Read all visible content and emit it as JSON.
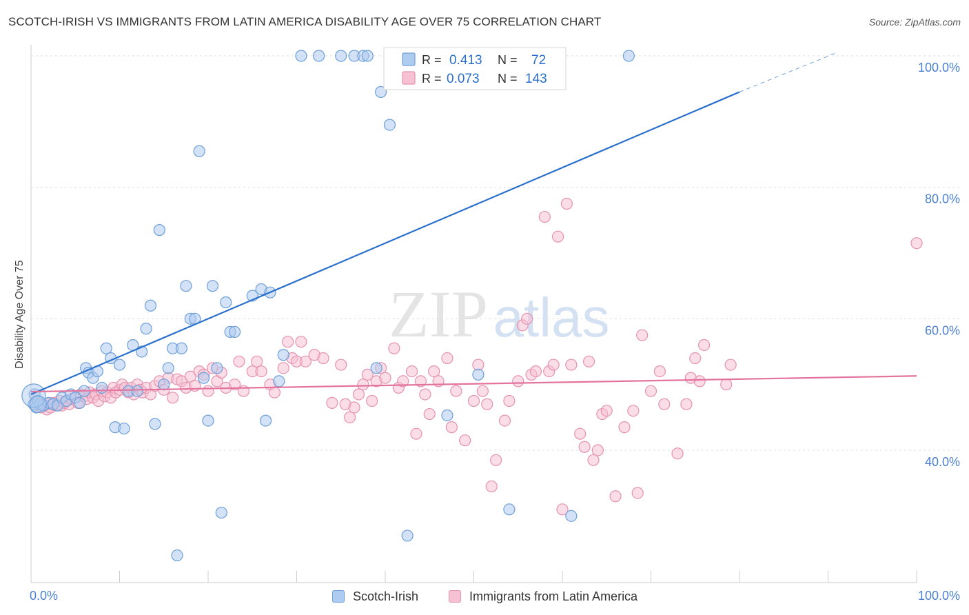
{
  "title": "SCOTCH-IRISH VS IMMIGRANTS FROM LATIN AMERICA DISABILITY AGE OVER 75 CORRELATION CHART",
  "source": "Source: ZipAtlas.com",
  "watermark": {
    "zip": "ZIP",
    "atlas": "atlas"
  },
  "colors": {
    "blue_fill": "#aecbf0",
    "blue_stroke": "#6d9fd8",
    "blue_line": "#2a6fcb",
    "pink_fill": "#f6c1d2",
    "pink_stroke": "#e592b0",
    "pink_line": "#e3739d",
    "axis_label": "#4a7fd0",
    "grid": "#dddddd"
  },
  "legend": {
    "rows": [
      {
        "r_label": "R =",
        "r_value": "0.413",
        "n_label": "N =",
        "n_value": "72"
      },
      {
        "r_label": "R =",
        "r_value": "0.073",
        "n_label": "N =",
        "n_value": "143"
      }
    ]
  },
  "bottom_legend": [
    "Scotch-Irish",
    "Immigrants from Latin America"
  ],
  "chart_data": {
    "type": "scatter",
    "title": "SCOTCH-IRISH VS IMMIGRANTS FROM LATIN AMERICA DISABILITY AGE OVER 75 CORRELATION CHART",
    "ylabel": "Disability Age Over 75",
    "x_tick_labels": [
      "0.0%",
      "100.0%"
    ],
    "y_tick_labels": [
      "100.0%",
      "80.0%",
      "60.0%",
      "40.0%"
    ],
    "y_ticks": [
      100,
      80,
      60,
      40
    ],
    "xlim": [
      0,
      100
    ],
    "ylim": [
      22,
      102
    ],
    "grid": true,
    "legend_position": "top-center",
    "series": [
      {
        "name": "Scotch-Irish",
        "color": "#aecbf0",
        "r": 0.413,
        "n": 72,
        "trend": {
          "x0": 0,
          "y0": 48.5,
          "x1": 80,
          "y1": 94.5,
          "dashed_to_x": 91,
          "dashed_to_y": 100.5
        },
        "points": [
          [
            0.3,
            47.0
          ],
          [
            0.4,
            48.5
          ],
          [
            0.6,
            46.5
          ],
          [
            0.8,
            47.5
          ],
          [
            1.0,
            47.0
          ],
          [
            1.4,
            46.8
          ],
          [
            2.0,
            47.2
          ],
          [
            2.5,
            47.0
          ],
          [
            3.0,
            46.8
          ],
          [
            3.5,
            48.0
          ],
          [
            4.0,
            47.5
          ],
          [
            4.5,
            48.5
          ],
          [
            5.0,
            48.0
          ],
          [
            5.5,
            47.2
          ],
          [
            6.0,
            49.0
          ],
          [
            6.2,
            52.5
          ],
          [
            6.5,
            51.8
          ],
          [
            7.0,
            51.0
          ],
          [
            7.5,
            52.0
          ],
          [
            8.0,
            49.5
          ],
          [
            8.5,
            55.5
          ],
          [
            9.0,
            54.0
          ],
          [
            9.5,
            43.5
          ],
          [
            10.0,
            53.0
          ],
          [
            10.5,
            43.3
          ],
          [
            11.0,
            49.0
          ],
          [
            11.5,
            56.0
          ],
          [
            12.0,
            49.0
          ],
          [
            12.5,
            55.0
          ],
          [
            13.0,
            58.5
          ],
          [
            13.5,
            62.0
          ],
          [
            14.0,
            44.0
          ],
          [
            14.5,
            73.5
          ],
          [
            15.0,
            50.0
          ],
          [
            15.5,
            52.5
          ],
          [
            16.0,
            55.5
          ],
          [
            16.5,
            24.0
          ],
          [
            17.0,
            55.5
          ],
          [
            17.5,
            65.0
          ],
          [
            18.0,
            60.0
          ],
          [
            18.5,
            60.0
          ],
          [
            19.0,
            85.5
          ],
          [
            19.5,
            51.0
          ],
          [
            20.0,
            44.5
          ],
          [
            20.5,
            65.0
          ],
          [
            21.0,
            52.5
          ],
          [
            21.5,
            30.5
          ],
          [
            22.0,
            62.5
          ],
          [
            22.5,
            58.0
          ],
          [
            23.0,
            58.0
          ],
          [
            25.0,
            63.5
          ],
          [
            26.0,
            64.5
          ],
          [
            26.5,
            44.5
          ],
          [
            27.0,
            64.0
          ],
          [
            28.0,
            50.5
          ],
          [
            28.5,
            54.5
          ],
          [
            30.5,
            100.0
          ],
          [
            32.5,
            100.0
          ],
          [
            35.0,
            100.0
          ],
          [
            36.5,
            100.0
          ],
          [
            37.5,
            100.0
          ],
          [
            38.0,
            100.0
          ],
          [
            39.0,
            52.5
          ],
          [
            39.5,
            94.5
          ],
          [
            40.5,
            89.5
          ],
          [
            41.0,
            100.0
          ],
          [
            42.5,
            27.0
          ],
          [
            43.5,
            100.0
          ],
          [
            43.8,
            100.0
          ],
          [
            47.0,
            45.3
          ],
          [
            50.5,
            51.5
          ],
          [
            54.0,
            31.0
          ],
          [
            61.0,
            30.0
          ],
          [
            67.5,
            100.0
          ]
        ]
      },
      {
        "name": "Immigrants from Latin America",
        "color": "#f6c1d2",
        "r": 0.073,
        "n": 143,
        "trend": {
          "x0": 0,
          "y0": 48.9,
          "x1": 100,
          "y1": 51.3
        },
        "points": [
          [
            0.5,
            47.5
          ],
          [
            0.8,
            46.8
          ],
          [
            1.0,
            47.2
          ],
          [
            1.2,
            46.5
          ],
          [
            1.5,
            46.8
          ],
          [
            1.8,
            46.2
          ],
          [
            2.0,
            47.0
          ],
          [
            2.2,
            46.5
          ],
          [
            2.5,
            47.2
          ],
          [
            2.8,
            46.8
          ],
          [
            3.0,
            47.0
          ],
          [
            3.2,
            47.5
          ],
          [
            3.5,
            46.8
          ],
          [
            3.8,
            47.2
          ],
          [
            4.0,
            47.5
          ],
          [
            4.3,
            47.0
          ],
          [
            4.6,
            47.8
          ],
          [
            5.0,
            48.0
          ],
          [
            5.3,
            47.2
          ],
          [
            5.6,
            48.5
          ],
          [
            6.0,
            48.2
          ],
          [
            6.3,
            47.8
          ],
          [
            6.6,
            48.8
          ],
          [
            7.0,
            48.0
          ],
          [
            7.3,
            48.5
          ],
          [
            7.6,
            47.5
          ],
          [
            8.0,
            49.0
          ],
          [
            8.3,
            48.2
          ],
          [
            8.6,
            48.8
          ],
          [
            9.0,
            48.0
          ],
          [
            9.3,
            49.5
          ],
          [
            9.6,
            48.8
          ],
          [
            10.0,
            49.2
          ],
          [
            10.3,
            50.0
          ],
          [
            10.6,
            49.5
          ],
          [
            11.0,
            48.8
          ],
          [
            11.3,
            49.5
          ],
          [
            11.6,
            48.5
          ],
          [
            12.0,
            50.0
          ],
          [
            12.3,
            49.2
          ],
          [
            12.6,
            48.8
          ],
          [
            13.0,
            49.5
          ],
          [
            13.5,
            48.5
          ],
          [
            14.0,
            49.8
          ],
          [
            14.5,
            50.5
          ],
          [
            15.0,
            49.2
          ],
          [
            15.5,
            51.0
          ],
          [
            16.0,
            48.0
          ],
          [
            16.5,
            50.8
          ],
          [
            17.0,
            50.5
          ],
          [
            17.5,
            49.5
          ],
          [
            18.0,
            51.2
          ],
          [
            18.5,
            49.8
          ],
          [
            19.0,
            52.0
          ],
          [
            19.5,
            51.5
          ],
          [
            20.0,
            49.0
          ],
          [
            20.5,
            52.5
          ],
          [
            21.0,
            50.5
          ],
          [
            21.5,
            51.8
          ],
          [
            22.0,
            49.5
          ],
          [
            23.0,
            50.0
          ],
          [
            23.5,
            53.5
          ],
          [
            24.0,
            49.0
          ],
          [
            25.0,
            52.0
          ],
          [
            25.5,
            53.5
          ],
          [
            26.0,
            52.0
          ],
          [
            27.0,
            50.0
          ],
          [
            27.5,
            48.8
          ],
          [
            28.5,
            52.5
          ],
          [
            29.0,
            56.5
          ],
          [
            29.5,
            54.0
          ],
          [
            30.0,
            53.5
          ],
          [
            30.5,
            56.5
          ],
          [
            31.0,
            53.5
          ],
          [
            32.0,
            54.5
          ],
          [
            33.0,
            54.0
          ],
          [
            34.0,
            47.2
          ],
          [
            35.0,
            53.0
          ],
          [
            35.5,
            47.0
          ],
          [
            36.0,
            45.0
          ],
          [
            36.5,
            46.5
          ],
          [
            37.0,
            48.5
          ],
          [
            37.5,
            50.0
          ],
          [
            38.0,
            51.5
          ],
          [
            38.5,
            47.5
          ],
          [
            39.0,
            50.5
          ],
          [
            39.5,
            52.5
          ],
          [
            40.0,
            51.0
          ],
          [
            41.0,
            55.5
          ],
          [
            41.5,
            49.5
          ],
          [
            42.0,
            50.5
          ],
          [
            43.0,
            52.0
          ],
          [
            43.5,
            42.5
          ],
          [
            44.0,
            50.5
          ],
          [
            44.5,
            48.5
          ],
          [
            45.0,
            45.5
          ],
          [
            45.5,
            52.0
          ],
          [
            46.0,
            50.5
          ],
          [
            47.0,
            54.0
          ],
          [
            47.5,
            43.5
          ],
          [
            48.0,
            49.0
          ],
          [
            49.0,
            41.5
          ],
          [
            50.0,
            47.5
          ],
          [
            50.5,
            53.0
          ],
          [
            51.0,
            49.0
          ],
          [
            51.5,
            47.0
          ],
          [
            52.0,
            34.5
          ],
          [
            52.5,
            38.5
          ],
          [
            53.5,
            44.5
          ],
          [
            54.0,
            47.5
          ],
          [
            55.0,
            50.5
          ],
          [
            55.5,
            59.0
          ],
          [
            56.0,
            60.0
          ],
          [
            56.5,
            51.5
          ],
          [
            57.0,
            52.0
          ],
          [
            58.0,
            75.5
          ],
          [
            58.5,
            52.0
          ],
          [
            59.0,
            53.0
          ],
          [
            59.5,
            72.5
          ],
          [
            60.0,
            31.0
          ],
          [
            60.5,
            77.5
          ],
          [
            61.0,
            53.0
          ],
          [
            62.0,
            42.5
          ],
          [
            62.5,
            40.5
          ],
          [
            63.0,
            53.5
          ],
          [
            63.5,
            38.5
          ],
          [
            64.0,
            40.0
          ],
          [
            64.5,
            45.5
          ],
          [
            65.0,
            46.0
          ],
          [
            66.0,
            33.0
          ],
          [
            67.0,
            43.5
          ],
          [
            68.0,
            46.0
          ],
          [
            68.5,
            33.5
          ],
          [
            69.0,
            57.5
          ],
          [
            70.0,
            49.0
          ],
          [
            71.0,
            52.0
          ],
          [
            71.5,
            47.0
          ],
          [
            73.0,
            39.5
          ],
          [
            74.0,
            47.0
          ],
          [
            74.5,
            51.0
          ],
          [
            75.0,
            54.0
          ],
          [
            75.5,
            50.5
          ],
          [
            76.0,
            56.0
          ],
          [
            78.5,
            50.0
          ],
          [
            79.0,
            53.0
          ],
          [
            100.0,
            71.5
          ]
        ]
      }
    ]
  }
}
